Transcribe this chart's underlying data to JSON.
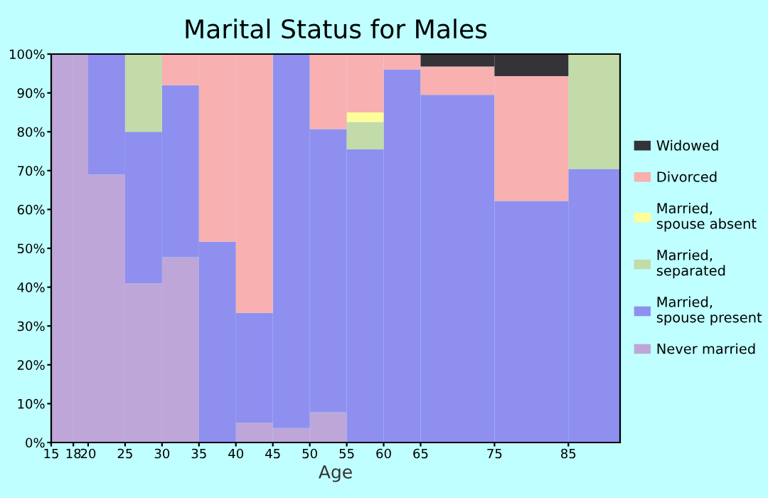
{
  "chart_data": {
    "type": "bar",
    "stacked": true,
    "title": "Marital Status for Males",
    "xlabel": "Age",
    "x": [
      16.5,
      19,
      22.5,
      27.5,
      32.5,
      37.5,
      42.5,
      47.5,
      52.5,
      57.5,
      62.5,
      70,
      80,
      88.5
    ],
    "xlim": [
      15,
      92
    ],
    "xticks": [
      15,
      18,
      20,
      25,
      30,
      35,
      40,
      45,
      50,
      55,
      60,
      65,
      75,
      85
    ],
    "ylim": [
      0,
      100
    ],
    "yticks": [
      {
        "value": 0,
        "label": "0%"
      },
      {
        "value": 10,
        "label": "10%"
      },
      {
        "value": 20,
        "label": "20%"
      },
      {
        "value": 30,
        "label": "30%"
      },
      {
        "value": 40,
        "label": "40%"
      },
      {
        "value": 50,
        "label": "50%"
      },
      {
        "value": 60,
        "label": "60%"
      },
      {
        "value": 70,
        "label": "70%"
      },
      {
        "value": 80,
        "label": "80%"
      },
      {
        "value": 90,
        "label": "90%"
      },
      {
        "value": 100,
        "label": "100%"
      }
    ],
    "grid": false,
    "legend": "right",
    "series": [
      {
        "name": "Never married",
        "color": "#bea6d8",
        "values": [
          100,
          100,
          69,
          41,
          47.7,
          0,
          5.1,
          3.7,
          7.8,
          0,
          0,
          0,
          0,
          0
        ]
      },
      {
        "name": "Married,\nspouse present",
        "color": "#8f8ff0",
        "values": [
          0,
          0,
          31,
          39,
          44.3,
          51.7,
          28.3,
          96.3,
          72.9,
          75.5,
          96,
          89.5,
          62.2,
          70.4
        ]
      },
      {
        "name": "Married,\nseparated",
        "color": "#c2dba8",
        "values": [
          0,
          0,
          0,
          20,
          0,
          0,
          0,
          0,
          0,
          7,
          0,
          0,
          0,
          29.6
        ]
      },
      {
        "name": "Married,\nspouse absent",
        "color": "#fdfd99",
        "values": [
          0,
          0,
          0,
          0,
          0,
          0,
          0,
          0,
          0,
          2.5,
          0,
          0,
          0,
          0
        ]
      },
      {
        "name": "Divorced",
        "color": "#f8b0b0",
        "values": [
          0,
          0,
          0,
          0,
          8,
          48.3,
          66.6,
          0,
          19.3,
          15,
          4,
          7.3,
          32.1,
          0
        ]
      },
      {
        "name": "Widowed",
        "color": "#333338",
        "values": [
          0,
          0,
          0,
          0,
          0,
          0,
          0,
          0,
          0,
          0,
          0,
          3.2,
          5.7,
          0
        ]
      }
    ]
  }
}
